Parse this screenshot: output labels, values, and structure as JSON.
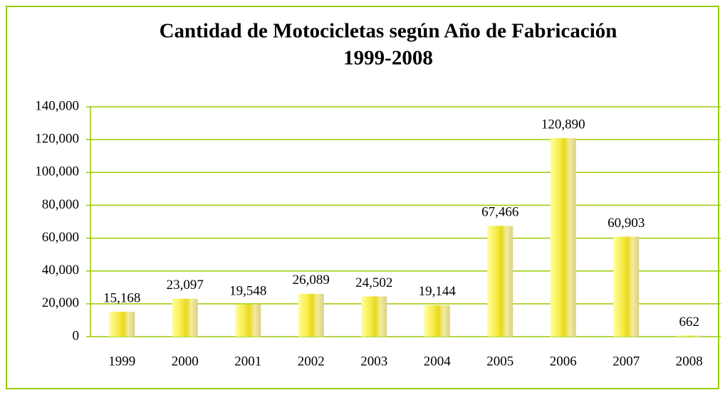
{
  "chart_data": {
    "type": "bar",
    "title": "Cantidad de Motocicletas según Año de Fabricación",
    "subtitle": "1999-2008",
    "categories": [
      "1999",
      "2000",
      "2001",
      "2002",
      "2003",
      "2004",
      "2005",
      "2006",
      "2007",
      "2008"
    ],
    "values": [
      15168,
      23097,
      19548,
      26089,
      24502,
      19144,
      67466,
      120890,
      60903,
      662
    ],
    "value_labels": [
      "15,168",
      "23,097",
      "19,548",
      "26,089",
      "24,502",
      "19,144",
      "67,466",
      "120,890",
      "60,903",
      "662"
    ],
    "color": "#f2e640",
    "ylim": [
      0,
      140000
    ],
    "yticks": [
      {
        "value": 0,
        "label": "0"
      },
      {
        "value": 20000,
        "label": "20,000"
      },
      {
        "value": 40000,
        "label": "40,000"
      },
      {
        "value": 60000,
        "label": "60,000"
      },
      {
        "value": 80000,
        "label": "80,000"
      },
      {
        "value": 100000,
        "label": "100,000"
      },
      {
        "value": 120000,
        "label": "120,000"
      },
      {
        "value": 140000,
        "label": "140,000"
      }
    ],
    "grid": true
  }
}
